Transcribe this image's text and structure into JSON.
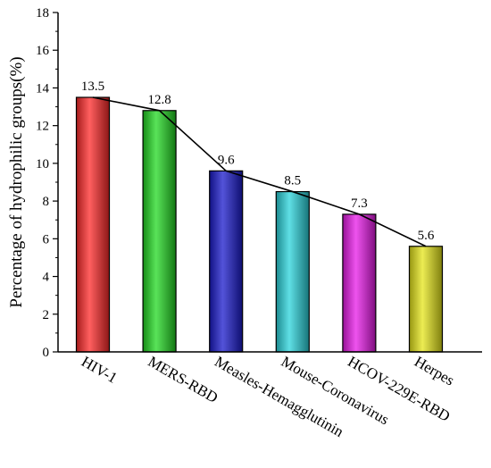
{
  "chart_data": {
    "type": "bar",
    "title": "",
    "xlabel": "",
    "ylabel": "Percentage of hydrophilic groups(%)",
    "ylim": [
      0,
      18
    ],
    "yticks": [
      0,
      2,
      4,
      6,
      8,
      10,
      12,
      14,
      16,
      18
    ],
    "categories": [
      "HIV-1",
      "MERS-RBD",
      "Measles-Hemagglutinin",
      "Mouse-Coronavirus",
      "HCOV-229E-RBD",
      "Herpes"
    ],
    "values": [
      13.5,
      12.8,
      9.6,
      8.5,
      7.3,
      5.6
    ],
    "data_labels": [
      "13.5",
      "12.8",
      "9.6",
      "8.5",
      "7.3",
      "5.6"
    ],
    "bar_colors": [
      "#ff2a2a",
      "#22d922",
      "#1a1acc",
      "#2ad4dc",
      "#e81ae8",
      "#e6e61a"
    ],
    "trend_line": true,
    "grid": false,
    "legend": "none"
  }
}
